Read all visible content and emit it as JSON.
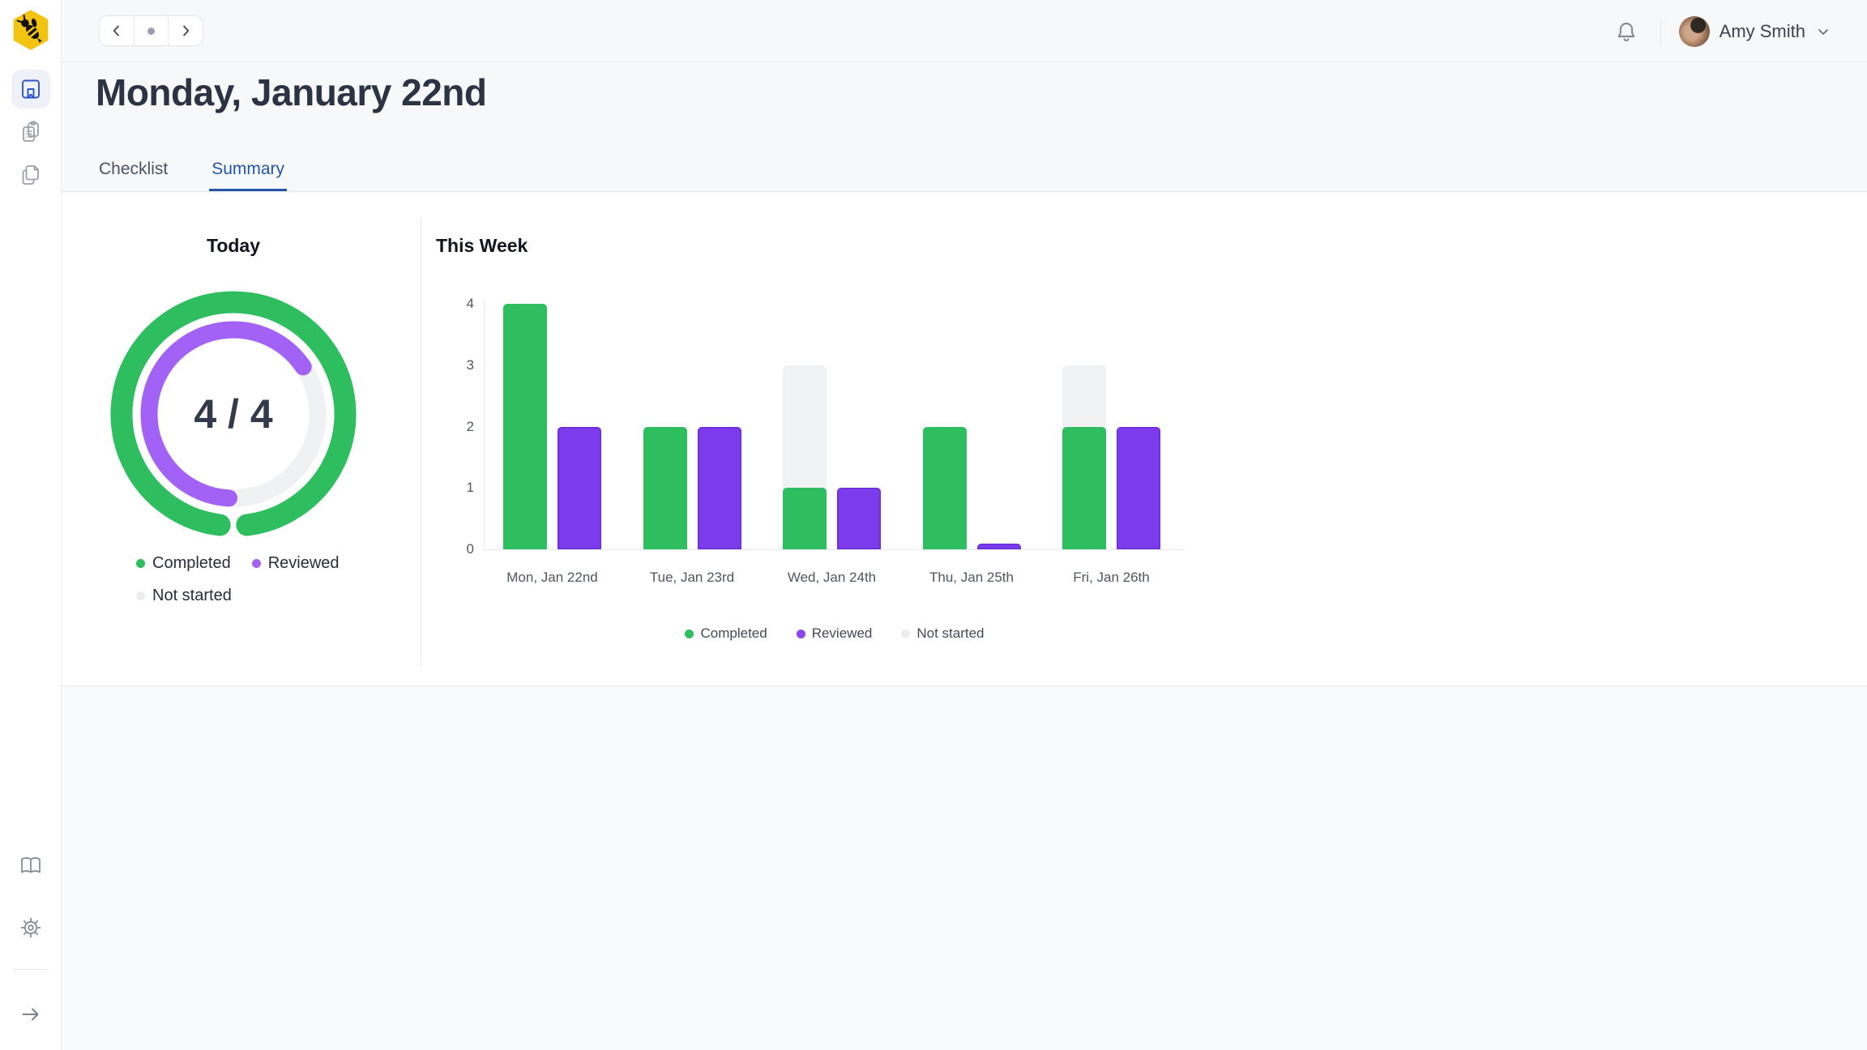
{
  "topbar": {
    "user_name": "Amy Smith",
    "icons": [
      "prev-arrow-icon",
      "today-dot-icon",
      "next-arrow-icon",
      "notifications-bell-icon",
      "chevron-down-icon"
    ]
  },
  "sidebar": {
    "logo_icon": "bee-logo",
    "items": [
      {
        "icon": "journal-bookmark-icon",
        "active": true
      },
      {
        "icon": "checklist-clipboard-icon",
        "active": false
      },
      {
        "icon": "documents-copy-icon",
        "active": false
      }
    ],
    "bottom_items": [
      {
        "icon": "library-book-icon"
      },
      {
        "icon": "settings-gear-icon"
      },
      {
        "icon": "expand-arrow-icon"
      }
    ]
  },
  "page": {
    "title": "Monday, January 22nd"
  },
  "tabs": [
    {
      "label": "Checklist",
      "active": false
    },
    {
      "label": "Summary",
      "active": true
    }
  ],
  "colors": {
    "completed_green": "#2ebd5f",
    "reviewed_purple_bar": "#7c3bed",
    "reviewed_purple_ring": "#a262f5",
    "not_started_gray": "#f1f2f3",
    "ring_track": "#f0f1f3",
    "accent_blue": "#2355a8",
    "logo_yellow": "#f2c411"
  },
  "chart_data": [
    {
      "type": "donut",
      "title": "Today",
      "center_label": "4 / 4",
      "completed": 4,
      "total": 4,
      "completed_gap_deg": 14,
      "reviewed_sweep_deg": 233,
      "legend": [
        {
          "label": "Completed",
          "color": "#2ebd5f"
        },
        {
          "label": "Reviewed",
          "color": "#a262f5"
        },
        {
          "label": "Not started",
          "color": "#ededef"
        }
      ]
    },
    {
      "type": "bar",
      "title": "This Week",
      "categories": [
        "Mon, Jan 22nd",
        "Tue, Jan 23rd",
        "Wed, Jan 24th",
        "Thu, Jan 25th",
        "Fri, Jan 26th"
      ],
      "series": [
        {
          "name": "Completed",
          "color": "#2ebd5f",
          "values": [
            4,
            2,
            1,
            2,
            2
          ]
        },
        {
          "name": "Not started",
          "color": "#f1f2f3",
          "values": [
            0,
            0,
            2,
            0,
            1
          ],
          "stacked_on": "Completed"
        },
        {
          "name": "Reviewed",
          "color": "#7c3bed",
          "values": [
            2,
            2,
            1,
            0,
            2
          ]
        }
      ],
      "ylim": [
        0,
        4
      ],
      "yticks": [
        0,
        1,
        2,
        3,
        4
      ],
      "grid": false,
      "legend_position": "bottom",
      "legend": [
        {
          "label": "Completed",
          "color": "#2ebd5f"
        },
        {
          "label": "Reviewed",
          "color": "#8b46ee"
        },
        {
          "label": "Not started",
          "color": "#ededef"
        }
      ]
    }
  ]
}
